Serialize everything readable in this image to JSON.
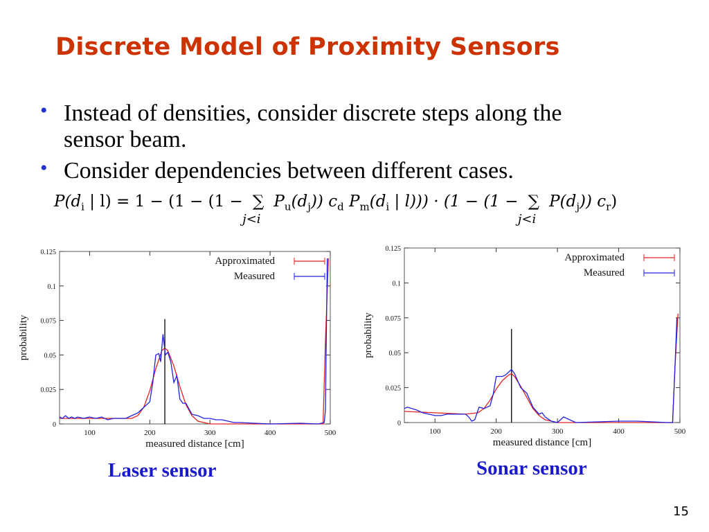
{
  "slide": {
    "title": "Discrete Model of Proximity Sensors",
    "bullets": [
      {
        "line1": "Instead of densities, consider discrete steps along the",
        "line2": "sensor beam."
      },
      {
        "line1": "Consider dependencies between different cases."
      }
    ],
    "formula": {
      "lhs": "P(d",
      "lhs_sub": "i",
      "lhs_rest": " | l) = 1 − (1 − (1 − ",
      "sum1": "∑",
      "sum1_under": "j<i",
      "part2": " P",
      "part2_sub": "u",
      "part3": "(d",
      "part3_sub": "j",
      "part4": ")) c",
      "part4_sub": "d",
      "part5": " P",
      "part5_sub": "m",
      "part6": "(d",
      "part6_sub": "i",
      "part7": " | l))) · (1 − (1 − ",
      "sum2": "∑",
      "sum2_under": "j<i",
      "part8": " P(d",
      "part8_sub": "j",
      "part9": ")) c",
      "part9_sub": "r",
      "part10": ")"
    },
    "captions": {
      "laser": "Laser sensor",
      "sonar": "Sonar sensor"
    },
    "page_number": "15"
  },
  "chart_data": [
    {
      "type": "line",
      "name": "laser",
      "xlabel": "measured distance [cm]",
      "ylabel": "probability",
      "xlim": [
        50,
        500
      ],
      "ylim": [
        0,
        0.125
      ],
      "xticks": [
        100,
        200,
        300,
        400,
        500
      ],
      "xtick_labels": [
        "100",
        "200",
        "300",
        "400",
        "500"
      ],
      "yticks": [
        0,
        0.025,
        0.05,
        0.075,
        0.1,
        0.125
      ],
      "ytick_labels": [
        "0",
        "0.025",
        "0.05",
        "0.075",
        "0.1",
        "0.125"
      ],
      "legend": "top-right",
      "true_distance_marker": {
        "x": 225,
        "y": 0.076
      },
      "series": [
        {
          "name": "Approximated",
          "color": "#E02020",
          "x": [
            50,
            70,
            90,
            110,
            130,
            150,
            170,
            180,
            190,
            200,
            210,
            220,
            225,
            230,
            240,
            250,
            260,
            270,
            280,
            290,
            300,
            350,
            400,
            450,
            488,
            492,
            497
          ],
          "y": [
            0.004,
            0.004,
            0.004,
            0.004,
            0.004,
            0.004,
            0.004,
            0.006,
            0.012,
            0.024,
            0.04,
            0.053,
            0.055,
            0.053,
            0.042,
            0.027,
            0.014,
            0.006,
            0.002,
            0.001,
            0,
            0,
            0,
            0,
            0,
            0.06,
            0.12
          ]
        },
        {
          "name": "Measured",
          "color": "#2020E0",
          "x": [
            50,
            55,
            60,
            65,
            70,
            75,
            80,
            90,
            100,
            110,
            120,
            130,
            140,
            150,
            160,
            170,
            180,
            190,
            200,
            205,
            210,
            215,
            218,
            222,
            226,
            230,
            235,
            240,
            245,
            250,
            255,
            260,
            270,
            280,
            290,
            300,
            310,
            320,
            330,
            340,
            350,
            400,
            450,
            480,
            490,
            492,
            495
          ],
          "y": [
            0.005,
            0.004,
            0.006,
            0.004,
            0.005,
            0.004,
            0.005,
            0.004,
            0.005,
            0.004,
            0.005,
            0.003,
            0.004,
            0.004,
            0.004,
            0.006,
            0.008,
            0.012,
            0.016,
            0.03,
            0.05,
            0.051,
            0.045,
            0.065,
            0.05,
            0.052,
            0.045,
            0.03,
            0.035,
            0.018,
            0.015,
            0.015,
            0.007,
            0.006,
            0.004,
            0.004,
            0.003,
            0.003,
            0.002,
            0.001,
            0.001,
            0,
            0.0005,
            0,
            0.001,
            0.01,
            0.12
          ]
        }
      ]
    },
    {
      "type": "line",
      "name": "sonar",
      "xlabel": "measured distance [cm]",
      "ylabel": "probability",
      "xlim": [
        50,
        500
      ],
      "ylim": [
        0,
        0.125
      ],
      "xticks": [
        100,
        200,
        300,
        400,
        500
      ],
      "xtick_labels": [
        "100",
        "200",
        "300",
        "400",
        "500"
      ],
      "yticks": [
        0,
        0.025,
        0.05,
        0.075,
        0.1,
        0.125
      ],
      "ytick_labels": [
        "0",
        "0.025",
        "0.05",
        "0.075",
        "0.1",
        "0.125"
      ],
      "legend": "top-right",
      "true_distance_marker": {
        "x": 225,
        "y": 0.067
      },
      "series": [
        {
          "name": "Approximated",
          "color": "#E02020",
          "x": [
            50,
            100,
            150,
            170,
            180,
            190,
            200,
            210,
            220,
            225,
            230,
            240,
            250,
            260,
            270,
            280,
            290,
            300,
            350,
            400,
            450,
            488,
            492,
            497
          ],
          "y": [
            0.008,
            0.007,
            0.006,
            0.007,
            0.01,
            0.016,
            0.024,
            0.03,
            0.034,
            0.035,
            0.033,
            0.026,
            0.018,
            0.01,
            0.005,
            0.002,
            0.001,
            0,
            0,
            0,
            0,
            0,
            0.04,
            0.078
          ]
        },
        {
          "name": "Measured",
          "color": "#2020E0",
          "x": [
            50,
            55,
            70,
            80,
            100,
            110,
            120,
            140,
            150,
            155,
            160,
            165,
            172,
            180,
            190,
            195,
            200,
            210,
            215,
            220,
            225,
            230,
            240,
            250,
            260,
            270,
            275,
            280,
            290,
            300,
            310,
            320,
            330,
            400,
            430,
            480,
            488,
            492,
            495
          ],
          "y": [
            0.01,
            0.011,
            0.009,
            0.007,
            0.005,
            0.005,
            0.006,
            0.006,
            0.006,
            0.004,
            0.001,
            0.002,
            0.011,
            0.01,
            0.012,
            0.02,
            0.033,
            0.033,
            0.034,
            0.036,
            0.038,
            0.035,
            0.025,
            0.021,
            0.011,
            0.006,
            0.007,
            0.004,
            0.001,
            0,
            0.004,
            0.002,
            0,
            0.001,
            0.001,
            0,
            0,
            0.04,
            0.075
          ]
        }
      ]
    }
  ]
}
